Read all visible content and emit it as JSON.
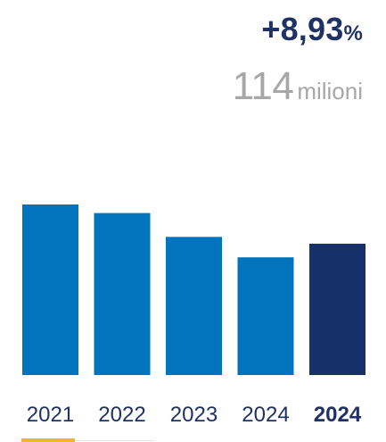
{
  "headline": {
    "value": "+8,93",
    "unit": "%"
  },
  "subline": {
    "value": "114",
    "unit": "milioni"
  },
  "colors": {
    "bar": "#0273bd",
    "bar_highlight": "#16306a",
    "text_dark": "#1f3263",
    "text_gray": "#a7a7a7",
    "underline": "#f2b429"
  },
  "chart_data": {
    "type": "bar",
    "categories": [
      "2021",
      "2022",
      "2023",
      "2024",
      "2024"
    ],
    "values": [
      100,
      95,
      81,
      69,
      77
    ],
    "highlight_index": 4,
    "title": "",
    "xlabel": "",
    "ylabel": "",
    "ylim": [
      0,
      100
    ],
    "grid": false
  }
}
